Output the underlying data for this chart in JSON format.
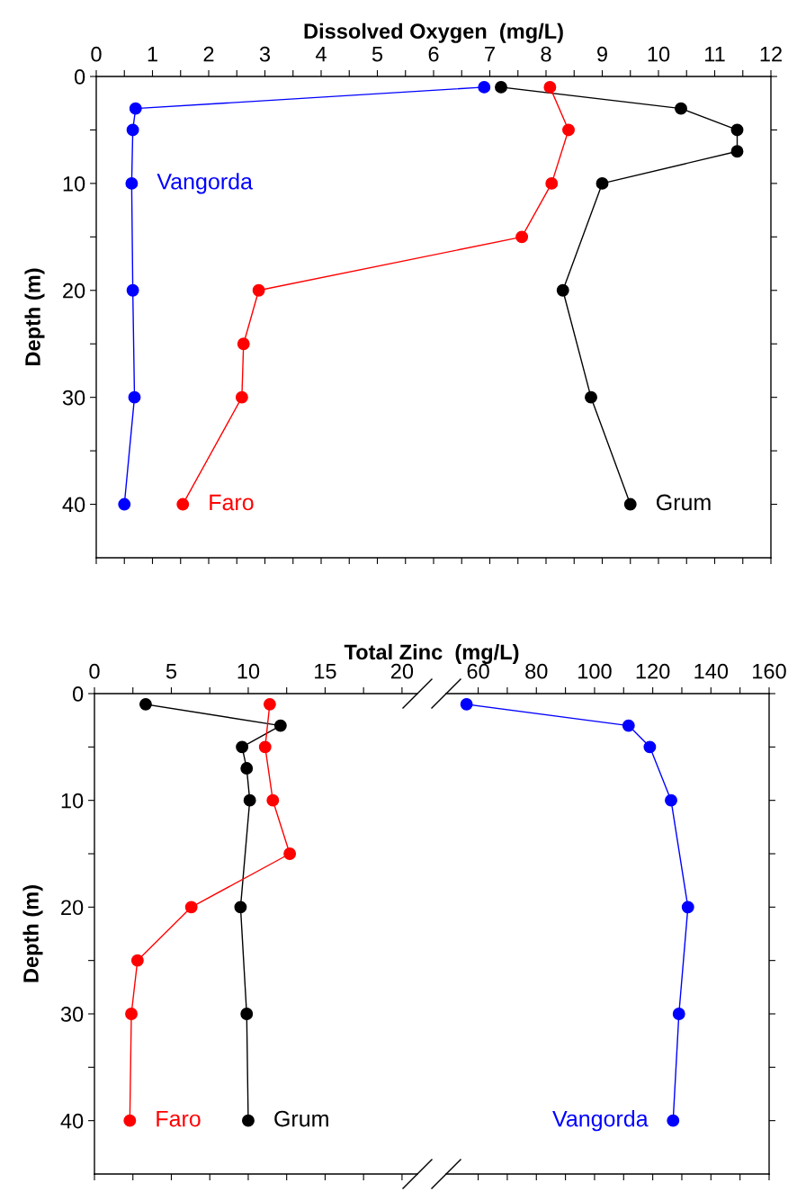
{
  "chart_data": [
    {
      "type": "line",
      "xlabel": "Dissolved Oxygen  (mg/L)",
      "ylabel": "Depth (m)",
      "marker": "circle",
      "grid": false,
      "legend": false,
      "xlim": [
        0,
        12
      ],
      "ylim": [
        45,
        0
      ],
      "xticks": [
        0,
        {
          "value": 0.5,
          "label": null
        },
        1,
        {
          "value": 1.5,
          "label": null
        },
        2,
        {
          "value": 2.5,
          "label": null
        },
        3,
        {
          "value": 3.5,
          "label": null
        },
        4,
        {
          "value": 4.5,
          "label": null
        },
        5,
        {
          "value": 5.5,
          "label": null
        },
        6,
        {
          "value": 6.5,
          "label": null
        },
        7,
        {
          "value": 7.5,
          "label": null
        },
        8,
        {
          "value": 8.5,
          "label": null
        },
        9,
        {
          "value": 9.5,
          "label": null
        },
        10,
        {
          "value": 10.5,
          "label": null
        },
        11,
        {
          "value": 11.5,
          "label": null
        },
        12
      ],
      "yticks": [
        0,
        {
          "value": 5,
          "label": null
        },
        10,
        {
          "value": 15,
          "label": null
        },
        20,
        {
          "value": 25,
          "label": null
        },
        30,
        {
          "value": 35,
          "label": null
        },
        40
      ],
      "series": [
        {
          "name": "Vangorda",
          "color": "#0000ff",
          "x": [
            6.9,
            0.7,
            0.65,
            0.63,
            0.65,
            0.68,
            0.5
          ],
          "values": [
            1,
            3,
            5,
            10,
            20,
            30,
            40
          ]
        },
        {
          "name": "Grum",
          "color": "#000000",
          "x": [
            7.2,
            10.4,
            11.4,
            11.4,
            9.0,
            8.3,
            8.8,
            9.5
          ],
          "values": [
            1,
            3,
            5,
            7,
            10,
            20,
            30,
            40
          ]
        },
        {
          "name": "Faro",
          "color": "#ff0000",
          "x": [
            8.07,
            8.4,
            8.1,
            7.57,
            2.89,
            2.62,
            2.59,
            1.54
          ],
          "values": [
            1,
            5,
            10,
            15,
            20,
            25,
            30,
            40
          ]
        }
      ]
    },
    {
      "type": "line",
      "xlabel": "Total Zinc  (mg/L)",
      "ylabel": "Depth (m)",
      "marker": "circle",
      "grid": false,
      "legend": false,
      "xlim": [
        0,
        21
      ],
      "ylim": [
        45,
        0
      ],
      "xticks": [
        0,
        {
          "value": 2.5,
          "label": null
        },
        5,
        {
          "value": 7.5,
          "label": null
        },
        10,
        {
          "value": 12.5,
          "label": null
        },
        15,
        {
          "value": 17.5,
          "label": null
        },
        20
      ],
      "yticks": [
        0,
        {
          "value": 5,
          "label": null
        },
        10,
        {
          "value": 15,
          "label": null
        },
        20,
        {
          "value": 25,
          "label": null
        },
        30,
        {
          "value": 35,
          "label": null
        },
        40
      ],
      "series": [
        {
          "name": "Grum",
          "color": "#000000",
          "x": [
            3.33,
            12.1,
            9.6,
            9.9,
            10.1,
            9.5,
            9.9,
            10.0
          ],
          "values": [
            1,
            3,
            5,
            7,
            10,
            20,
            30,
            40
          ]
        },
        {
          "name": "Faro",
          "color": "#ff0000",
          "x": [
            11.4,
            11.1,
            11.6,
            12.7,
            6.3,
            2.8,
            2.4,
            2.3
          ],
          "values": [
            1,
            5,
            10,
            15,
            20,
            25,
            30,
            40
          ]
        }
      ]
    },
    {
      "type": "line",
      "marker": "circle",
      "grid": false,
      "legend": false,
      "tick_labels": "x",
      "xlim": [
        49,
        160
      ],
      "ylim": [
        45,
        0
      ],
      "xticks": [
        60,
        {
          "value": 70,
          "label": null
        },
        80,
        {
          "value": 90,
          "label": null
        },
        100,
        {
          "value": 110,
          "label": null
        },
        120,
        {
          "value": 130,
          "label": null
        },
        140,
        {
          "value": 150,
          "label": null
        },
        160
      ],
      "yticks": [
        0,
        {
          "value": 5,
          "label": null
        },
        10,
        {
          "value": 15,
          "label": null
        },
        20,
        {
          "value": 25,
          "label": null
        },
        30,
        {
          "value": 35,
          "label": null
        },
        40
      ],
      "series": [
        {
          "name": "Vangorda",
          "color": "#0000ff",
          "x": [
            56.0,
            111.7,
            119.0,
            126.3,
            132.1,
            129.0,
            127.0
          ],
          "values": [
            1,
            3,
            5,
            10,
            20,
            30,
            40
          ]
        }
      ]
    }
  ]
}
